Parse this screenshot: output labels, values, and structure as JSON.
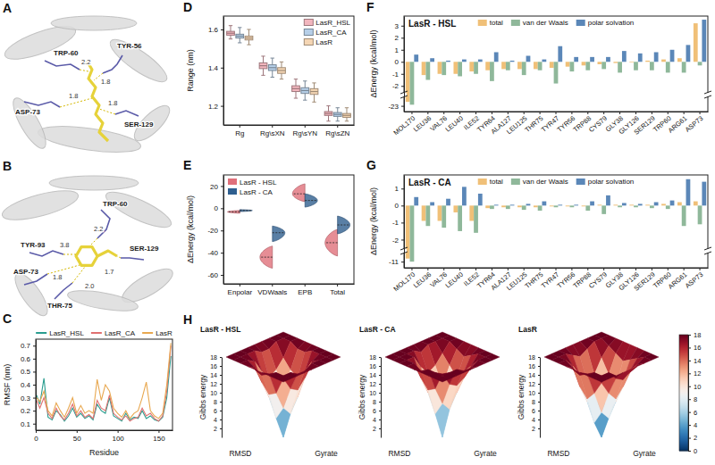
{
  "structures": [
    {
      "panel": "A",
      "labels": [
        "TRP-60",
        "2.2",
        "TYR-56",
        "1.8",
        "1.8",
        "ASP-73",
        "1.8",
        "SER-129"
      ]
    },
    {
      "panel": "B",
      "labels": [
        "TRP-60",
        "2.2",
        "TYR-93",
        "3.8",
        "ASP-73",
        "1.8",
        "1.7",
        "SER-129",
        "THR-75",
        "2.0"
      ]
    }
  ],
  "chart_data": [
    {
      "panel": "C",
      "type": "line",
      "xlabel": "Residue",
      "ylabel": "RMSF (nm)",
      "x": [
        1,
        5,
        10,
        15,
        20,
        25,
        30,
        35,
        40,
        45,
        50,
        55,
        60,
        65,
        70,
        75,
        80,
        85,
        90,
        95,
        100,
        105,
        110,
        115,
        120,
        125,
        130,
        135,
        140,
        145,
        150,
        155,
        160,
        165
      ],
      "xlim": [
        0,
        167
      ],
      "xticks": [
        0,
        50,
        100,
        150
      ],
      "ylim": [
        0.05,
        0.75
      ],
      "yticks": [
        0.1,
        0.2,
        0.3,
        0.4,
        0.5,
        0.6,
        0.7
      ],
      "legend": "top",
      "series": [
        {
          "name": "LasR_HSL",
          "color": "#2a9d8f",
          "values": [
            0.32,
            0.25,
            0.45,
            0.15,
            0.13,
            0.2,
            0.17,
            0.12,
            0.16,
            0.22,
            0.15,
            0.18,
            0.14,
            0.16,
            0.13,
            0.25,
            0.2,
            0.18,
            0.3,
            0.16,
            0.14,
            0.12,
            0.18,
            0.13,
            0.15,
            0.14,
            0.2,
            0.14,
            0.16,
            0.13,
            0.12,
            0.15,
            0.3,
            0.62
          ]
        },
        {
          "name": "LasR_CA",
          "color": "#e07070",
          "values": [
            0.28,
            0.22,
            0.3,
            0.18,
            0.14,
            0.22,
            0.16,
            0.13,
            0.18,
            0.25,
            0.16,
            0.2,
            0.15,
            0.17,
            0.14,
            0.28,
            0.22,
            0.2,
            0.32,
            0.18,
            0.15,
            0.13,
            0.16,
            0.12,
            0.14,
            0.15,
            0.22,
            0.16,
            0.18,
            0.14,
            0.12,
            0.16,
            0.35,
            0.7
          ]
        },
        {
          "name": "LasR",
          "color": "#e8a850",
          "values": [
            0.3,
            0.27,
            0.35,
            0.2,
            0.16,
            0.26,
            0.2,
            0.15,
            0.22,
            0.3,
            0.18,
            0.24,
            0.18,
            0.2,
            0.18,
            0.44,
            0.28,
            0.4,
            0.35,
            0.22,
            0.18,
            0.15,
            0.2,
            0.14,
            0.18,
            0.2,
            0.3,
            0.42,
            0.2,
            0.16,
            0.14,
            0.18,
            0.4,
            0.72
          ]
        }
      ]
    },
    {
      "panel": "D",
      "type": "box",
      "ylabel": "Range (nm)",
      "categories": [
        "Rg",
        "Rg\\sXN",
        "Rg\\sYN",
        "Rg\\sZN"
      ],
      "ylim": [
        1.1,
        1.67
      ],
      "yticks": [
        1.2,
        1.4,
        1.6
      ],
      "legend": "top-right",
      "series": [
        {
          "name": "LasR_HSL",
          "color": "#f2b6be",
          "whisker_low": [
            1.55,
            1.36,
            1.24,
            1.12
          ],
          "q1": [
            1.57,
            1.395,
            1.275,
            1.15
          ],
          "median": [
            1.58,
            1.41,
            1.29,
            1.16
          ],
          "q3": [
            1.59,
            1.425,
            1.305,
            1.17
          ],
          "whisker_high": [
            1.62,
            1.46,
            1.34,
            1.2
          ]
        },
        {
          "name": "LasR_CA",
          "color": "#b6cfe8",
          "whisker_low": [
            1.53,
            1.35,
            1.23,
            1.12
          ],
          "q1": [
            1.555,
            1.385,
            1.265,
            1.145
          ],
          "median": [
            1.565,
            1.4,
            1.28,
            1.155
          ],
          "q3": [
            1.575,
            1.415,
            1.295,
            1.165
          ],
          "whisker_high": [
            1.61,
            1.45,
            1.33,
            1.19
          ]
        },
        {
          "name": "LasR",
          "color": "#f5d6b4",
          "whisker_low": [
            1.52,
            1.34,
            1.22,
            1.12
          ],
          "q1": [
            1.545,
            1.37,
            1.26,
            1.14
          ],
          "median": [
            1.555,
            1.385,
            1.275,
            1.15
          ],
          "q3": [
            1.565,
            1.4,
            1.29,
            1.16
          ],
          "whisker_high": [
            1.6,
            1.43,
            1.32,
            1.19
          ]
        }
      ]
    },
    {
      "panel": "E",
      "type": "violin",
      "ylabel": "ΔEnergy (kcal/mol)",
      "categories": [
        "Enpolar",
        "VDWaals",
        "EPB",
        "Total"
      ],
      "ylim": [
        -68,
        30
      ],
      "yticks": [
        -60,
        -40,
        -20,
        0,
        20
      ],
      "legend": "top-left",
      "series": [
        {
          "name": "LasR - HSL",
          "color": "#e0707a",
          "min": [
            -4.5,
            -54,
            6,
            -43
          ],
          "median": [
            -3.2,
            -44,
            13,
            -31
          ],
          "max": [
            -2.0,
            -34,
            22,
            -19
          ]
        },
        {
          "name": "LasR - CA",
          "color": "#2f5f8f",
          "min": [
            -3.0,
            -30,
            1,
            -23
          ],
          "median": [
            -2.0,
            -22,
            7,
            -15
          ],
          "max": [
            -1.2,
            -16,
            13,
            -7
          ]
        }
      ]
    },
    {
      "panel": "F",
      "type": "bar",
      "title": "LasR - HSL",
      "ylabel": "ΔEnergy (kcal/mol)",
      "categories": [
        "MOL170",
        "LEU36",
        "VAL76",
        "LEU40",
        "ILE52",
        "TYR64",
        "ALA127",
        "LEU125",
        "THR75",
        "TYR47",
        "TYR56",
        "TRP88",
        "CYS79",
        "GLY38",
        "GLY126",
        "SER129",
        "TRP60",
        "ARG61",
        "ASP73"
      ],
      "ylim": [
        -24,
        3.8
      ],
      "ybreak": [
        -21.5,
        -2.5
      ],
      "yticks": [
        -23,
        -2,
        -1,
        0,
        1,
        2,
        3
      ],
      "legend": "top",
      "series": [
        {
          "name": "total",
          "color": "#f0c078",
          "values": [
            -22.3,
            -1.1,
            -1.0,
            -1.0,
            -0.8,
            -0.7,
            -0.6,
            -0.6,
            -0.6,
            -0.5,
            -0.4,
            -0.3,
            -0.2,
            -0.1,
            -0.05,
            0.1,
            0.2,
            0.3,
            3.2
          ]
        },
        {
          "name": "van der Waals",
          "color": "#8fb89a",
          "values": [
            -22.8,
            -1.5,
            -1.1,
            -1.2,
            -1.0,
            -1.6,
            -0.7,
            -1.1,
            -0.7,
            -1.8,
            -0.8,
            -0.7,
            -0.6,
            -0.9,
            -0.7,
            -0.7,
            -0.9,
            -0.9,
            -0.3
          ]
        },
        {
          "name": "polar solvation",
          "color": "#5b87b8",
          "values": [
            0.6,
            0.3,
            0.1,
            0.2,
            0.2,
            0.8,
            0.1,
            0.5,
            0.2,
            1.3,
            0.4,
            0.4,
            0.4,
            0.9,
            0.7,
            0.8,
            1.0,
            1.4,
            3.5
          ]
        }
      ]
    },
    {
      "panel": "G",
      "type": "bar",
      "title": "LasR - CA",
      "ylabel": "ΔEnergy (kcal/mol)",
      "categories": [
        "MOL170",
        "LEU36",
        "VAL76",
        "LEU40",
        "ILE52",
        "TYR64",
        "ALA127",
        "LEU125",
        "THR75",
        "TYR47",
        "TYR56",
        "TRP88",
        "CYS79",
        "GLY38",
        "GLY126",
        "SER129",
        "TRP60",
        "ARG61",
        "ASP73"
      ],
      "ylim": [
        -11.6,
        1.8
      ],
      "ybreak": [
        -10.2,
        -2.5
      ],
      "yticks": [
        -11,
        -2,
        -1,
        0,
        1
      ],
      "legend": "top",
      "series": [
        {
          "name": "total",
          "color": "#f0c078",
          "values": [
            -10.7,
            -0.9,
            -0.9,
            -0.4,
            -0.9,
            -0.15,
            -0.1,
            -0.1,
            -0.1,
            -0.05,
            -0.05,
            -0.05,
            0.05,
            0.05,
            0.05,
            0.05,
            0.1,
            0.2,
            0.25
          ]
        },
        {
          "name": "van der Waals",
          "color": "#8fb89a",
          "values": [
            -11.0,
            -1.2,
            -1.3,
            -1.5,
            -1.6,
            -0.2,
            -0.2,
            -0.25,
            -0.3,
            -0.1,
            -0.1,
            -0.3,
            -0.5,
            -0.1,
            -0.1,
            -0.15,
            -0.2,
            -1.2,
            -1.1
          ]
        },
        {
          "name": "polar solvation",
          "color": "#5b87b8",
          "values": [
            0.5,
            0.2,
            0.4,
            1.1,
            0.7,
            0.05,
            0.05,
            0.1,
            0.25,
            0.05,
            0.05,
            0.25,
            0.6,
            0.15,
            0.1,
            0.2,
            0.3,
            1.55,
            1.4
          ]
        }
      ]
    },
    {
      "panel": "H",
      "type": "surface",
      "xlabel": "RMSD",
      "ylabel": "Gyrate",
      "zlabel": "Gibbs energy",
      "zlim": [
        0,
        18
      ],
      "zticks": [
        2,
        4,
        6,
        8,
        10,
        12,
        14,
        16,
        18
      ],
      "colorbar": {
        "range": [
          0,
          18
        ],
        "ticks": [
          0,
          2,
          4,
          6,
          8,
          10,
          12,
          14,
          16,
          18
        ]
      },
      "surfaces": [
        {
          "title": "LasR - HSL",
          "cells": [
            [
              18,
              18,
              18,
              18,
              18,
              18,
              18,
              18,
              18
            ],
            [
              18,
              18,
              18,
              17,
              17,
              18,
              18,
              18,
              18
            ],
            [
              18,
              18,
              15,
              13,
              12,
              14,
              17,
              18,
              18
            ],
            [
              18,
              17,
              13,
              9,
              7,
              9,
              13,
              17,
              18
            ],
            [
              18,
              17,
              12,
              6,
              0,
              5,
              11,
              16,
              18
            ],
            [
              18,
              18,
              14,
              9,
              6,
              8,
              12,
              17,
              18
            ],
            [
              18,
              18,
              17,
              14,
              12,
              13,
              16,
              18,
              18
            ],
            [
              18,
              18,
              18,
              18,
              17,
              17,
              18,
              18,
              18
            ],
            [
              18,
              18,
              18,
              18,
              18,
              18,
              18,
              18,
              18
            ]
          ]
        },
        {
          "title": "LasR - CA",
          "cells": [
            [
              18,
              18,
              18,
              18,
              18,
              18,
              18,
              18,
              18
            ],
            [
              18,
              18,
              18,
              18,
              17,
              18,
              18,
              18,
              18
            ],
            [
              18,
              18,
              16,
              14,
              13,
              15,
              18,
              18,
              18
            ],
            [
              18,
              17,
              14,
              10,
              8,
              10,
              14,
              18,
              18
            ],
            [
              18,
              16,
              12,
              7,
              0,
              6,
              12,
              17,
              18
            ],
            [
              18,
              17,
              14,
              10,
              7,
              9,
              13,
              18,
              18
            ],
            [
              18,
              18,
              16,
              14,
              13,
              14,
              17,
              18,
              18
            ],
            [
              18,
              18,
              18,
              17,
              17,
              18,
              18,
              18,
              18
            ],
            [
              18,
              18,
              18,
              18,
              18,
              18,
              18,
              18,
              18
            ]
          ]
        },
        {
          "title": "LasR",
          "cells": [
            [
              18,
              18,
              18,
              18,
              18,
              18,
              18,
              18,
              18
            ],
            [
              18,
              18,
              18,
              17,
              16,
              17,
              18,
              18,
              18
            ],
            [
              18,
              17,
              15,
              12,
              11,
              13,
              16,
              18,
              18
            ],
            [
              18,
              16,
              12,
              8,
              6,
              8,
              12,
              17,
              18
            ],
            [
              18,
              15,
              10,
              5,
              0,
              4,
              10,
              16,
              18
            ],
            [
              18,
              16,
              12,
              8,
              5,
              7,
              12,
              17,
              18
            ],
            [
              18,
              17,
              15,
              12,
              10,
              12,
              15,
              18,
              18
            ],
            [
              18,
              18,
              17,
              16,
              15,
              16,
              18,
              18,
              18
            ],
            [
              18,
              18,
              18,
              18,
              18,
              18,
              18,
              18,
              18
            ]
          ]
        }
      ]
    }
  ]
}
